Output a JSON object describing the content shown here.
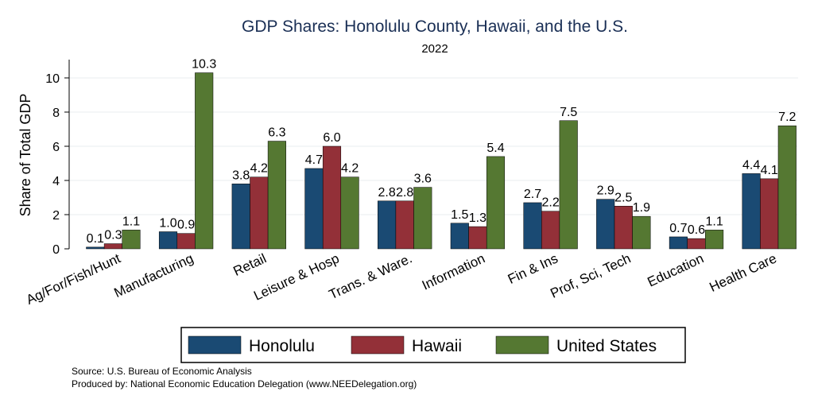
{
  "chart_data": {
    "type": "bar",
    "title": "GDP Shares: Honolulu County, Hawaii, and the U.S.",
    "subtitle": "2022",
    "xlabel": "",
    "ylabel": "Share of Total GDP",
    "ylim": [
      0,
      11
    ],
    "yticks": [
      0,
      2,
      4,
      6,
      8,
      10
    ],
    "grid": true,
    "categories": [
      "Ag/For/Fish/Hunt",
      "Manufacturing",
      "Retail",
      "Leisure & Hosp",
      "Trans. & Ware.",
      "Information",
      "Fin & Ins",
      "Prof, Sci, Tech",
      "Education",
      "Health Care"
    ],
    "series": [
      {
        "name": "Honolulu",
        "color": "#1a4a73",
        "values": [
          0.1,
          1.0,
          3.8,
          4.7,
          2.8,
          1.5,
          2.7,
          2.9,
          0.7,
          4.4
        ]
      },
      {
        "name": "Hawaii",
        "color": "#933038",
        "values": [
          0.3,
          0.9,
          4.2,
          6.0,
          2.8,
          1.3,
          2.2,
          2.5,
          0.6,
          4.1
        ]
      },
      {
        "name": "United States",
        "color": "#557832",
        "values": [
          1.1,
          10.3,
          6.3,
          4.2,
          3.6,
          5.4,
          7.5,
          1.9,
          1.1,
          7.2
        ]
      }
    ],
    "legend_position": "bottom",
    "notes": [
      "Source: U.S. Bureau of Economic Analysis",
      "Produced by: National Economic Education Delegation (www.NEEDelegation.org)"
    ]
  }
}
